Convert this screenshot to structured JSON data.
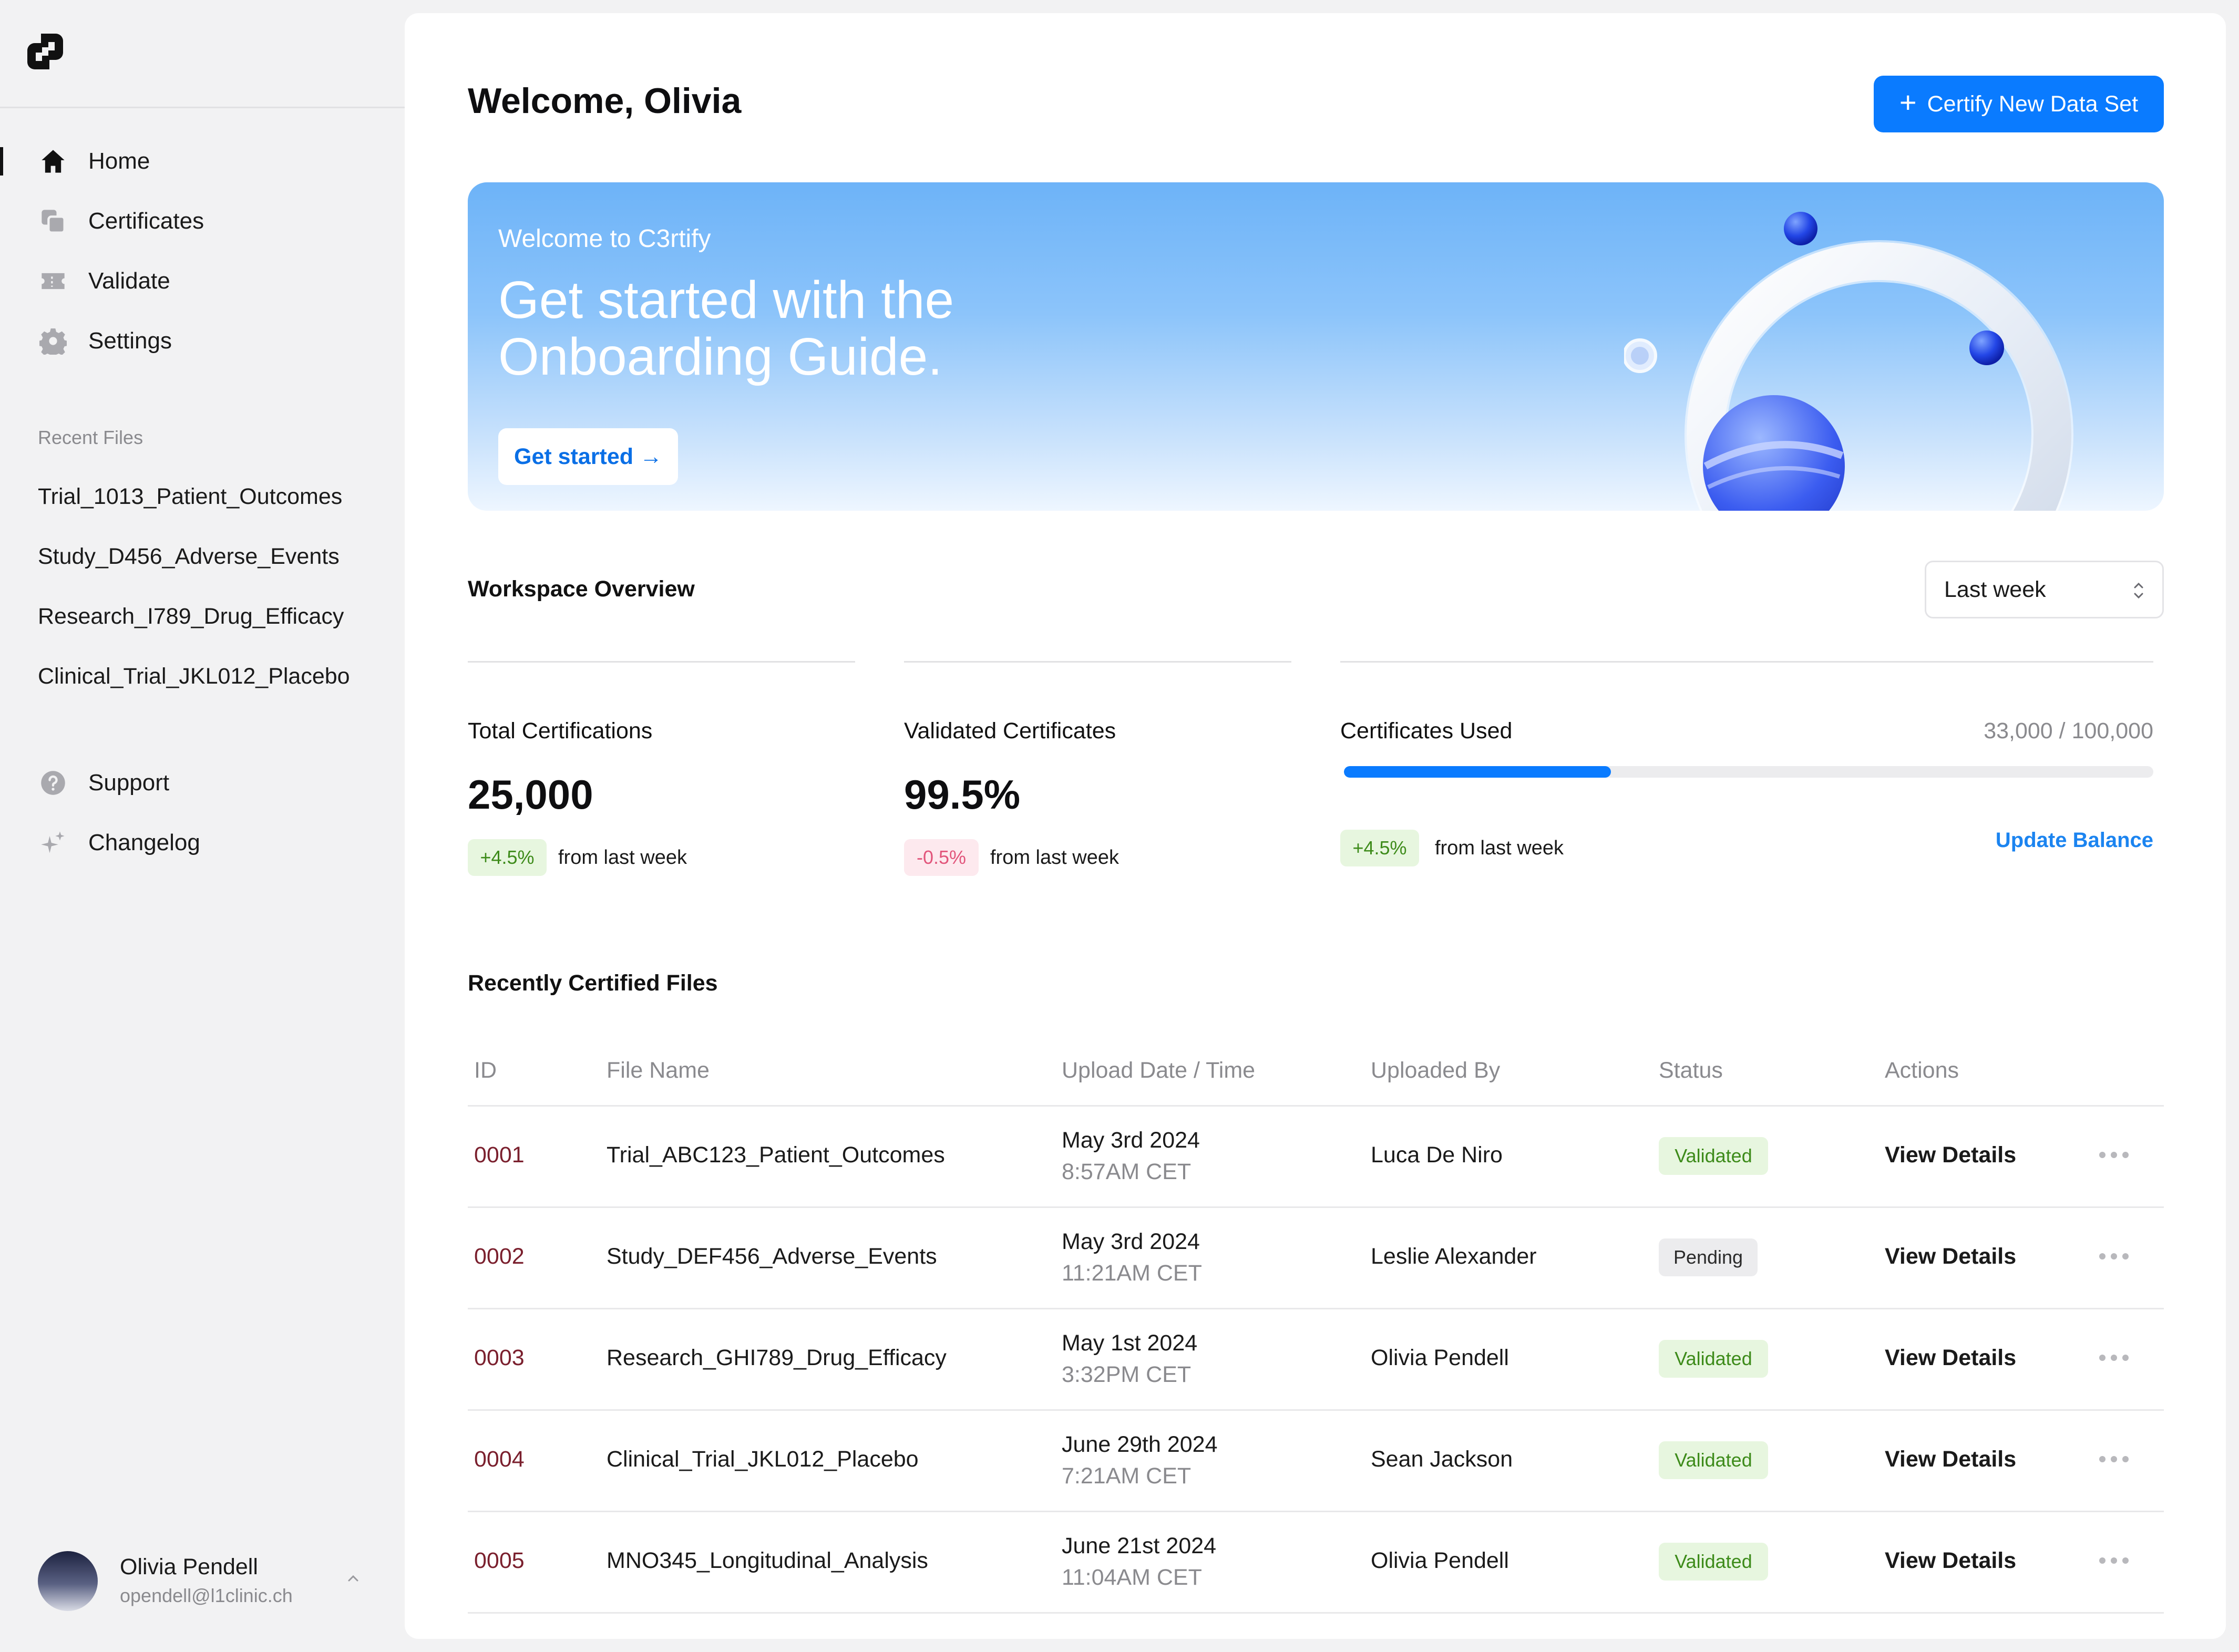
{
  "sidebar": {
    "logo_icon": "c3rtify-logo-icon",
    "nav": [
      {
        "label": "Home",
        "icon": "home-icon",
        "active": true
      },
      {
        "label": "Certificates",
        "icon": "copy-icon"
      },
      {
        "label": "Validate",
        "icon": "ticket-icon"
      },
      {
        "label": "Settings",
        "icon": "gear-icon"
      }
    ],
    "recent_label": "Recent Files",
    "recent_files": [
      "Trial_1013_Patient_Outcomes",
      "Study_D456_Adverse_Events",
      "Research_I789_Drug_Efficacy",
      "Clinical_Trial_JKL012_Placebo"
    ],
    "nav_secondary": [
      {
        "label": "Support",
        "icon": "help-circle-icon"
      },
      {
        "label": "Changelog",
        "icon": "sparkle-icon"
      }
    ],
    "user": {
      "name": "Olivia Pendell",
      "email": "opendell@l1clinic.ch"
    }
  },
  "header": {
    "welcome": "Welcome, Olivia",
    "certify_button": "Certify New Data Set"
  },
  "banner": {
    "eyebrow": "Welcome to C3rtify",
    "title": "Get started with the Onboarding Guide.",
    "button": "Get started →"
  },
  "overview": {
    "title": "Workspace Overview",
    "range": "Last week",
    "total": {
      "label": "Total Certifications",
      "value": "25,000",
      "change": "+4.5%",
      "change_text": "from last week"
    },
    "validated": {
      "label": "Validated Certificates",
      "value": "99.5%",
      "change": "-0.5%",
      "change_text": "from last week"
    },
    "used": {
      "label": "Certificates Used",
      "value": "33,000 / 100,000",
      "fraction": 0.33,
      "change": "+4.5%",
      "change_text": "from last week",
      "action": "Update Balance"
    }
  },
  "recent": {
    "title": "Recently Certified Files",
    "columns": [
      "ID",
      "File Name",
      "Upload Date / Time",
      "Uploaded By",
      "Status",
      "Actions"
    ],
    "rows": [
      {
        "id": "0001",
        "file": "Trial_ABC123_Patient_Outcomes",
        "date": "May 3rd 2024",
        "time": "8:57AM CET",
        "by": "Luca De Niro",
        "status": "Validated",
        "action": "View Details"
      },
      {
        "id": "0002",
        "file": "Study_DEF456_Adverse_Events",
        "date": "May 3rd 2024",
        "time": "11:21AM CET",
        "by": "Leslie Alexander",
        "status": "Pending",
        "action": "View Details"
      },
      {
        "id": "0003",
        "file": "Research_GHI789_Drug_Efficacy",
        "date": "May 1st 2024",
        "time": "3:32PM CET",
        "by": "Olivia Pendell",
        "status": "Validated",
        "action": "View Details"
      },
      {
        "id": "0004",
        "file": "Clinical_Trial_JKL012_Placebo",
        "date": "June 29th 2024",
        "time": "7:21AM CET",
        "by": "Sean Jackson",
        "status": "Validated",
        "action": "View Details"
      },
      {
        "id": "0005",
        "file": "MNO345_Longitudinal_Analysis",
        "date": "June 21st 2024",
        "time": "11:04AM CET",
        "by": "Olivia Pendell",
        "status": "Validated",
        "action": "View Details"
      }
    ]
  },
  "colors": {
    "accent": "#0a7bff",
    "positive": "#3d8b1a",
    "negative": "#e2557b"
  }
}
